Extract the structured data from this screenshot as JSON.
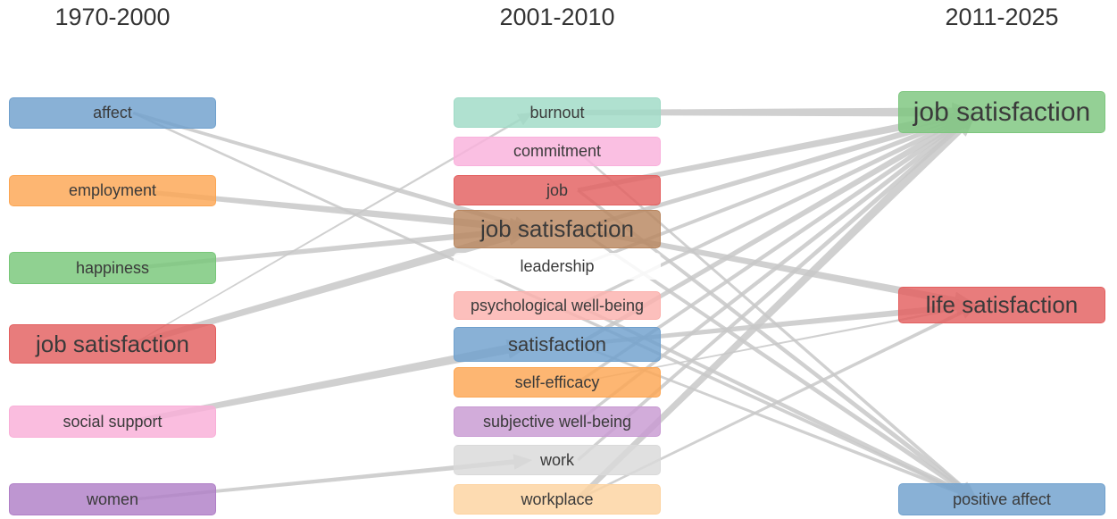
{
  "periods": [
    "1970-2000",
    "2001-2010",
    "2011-2025"
  ],
  "columns": [
    {
      "period": "1970-2000",
      "nodes": [
        {
          "label": "affect",
          "color": "#6fa0cd",
          "weight": 1
        },
        {
          "label": "employment",
          "color": "#fca653",
          "weight": 1
        },
        {
          "label": "happiness",
          "color": "#78c779",
          "weight": 1
        },
        {
          "label": "job satisfaction",
          "color": "#e35f5f",
          "weight": 3
        },
        {
          "label": "social support",
          "color": "#f9afd8",
          "weight": 1
        },
        {
          "label": "women",
          "color": "#b07fc7",
          "weight": 1
        }
      ]
    },
    {
      "period": "2001-2010",
      "nodes": [
        {
          "label": "burnout",
          "color": "#9fdac6",
          "weight": 1
        },
        {
          "label": "commitment",
          "color": "#f9b1dc",
          "weight": 1
        },
        {
          "label": "job",
          "color": "#e35f5f",
          "weight": 1
        },
        {
          "label": "job satisfaction",
          "color": "#b8865f",
          "weight": 3
        },
        {
          "label": "leadership",
          "color": "#ffffff",
          "weight": 1
        },
        {
          "label": "psychological well-being",
          "color": "#fbb1ad",
          "weight": 1
        },
        {
          "label": "satisfaction",
          "color": "#6fa0cd",
          "weight": 2
        },
        {
          "label": "self-efficacy",
          "color": "#fca653",
          "weight": 1
        },
        {
          "label": "subjective well-being",
          "color": "#c89ad2",
          "weight": 1
        },
        {
          "label": "work",
          "color": "#d9d9d9",
          "weight": 1
        },
        {
          "label": "workplace",
          "color": "#fdd3a0",
          "weight": 1
        }
      ]
    },
    {
      "period": "2011-2025",
      "nodes": [
        {
          "label": "job satisfaction",
          "color": "#7dc67e",
          "weight": 4
        },
        {
          "label": "life satisfaction",
          "color": "#e35f5f",
          "weight": 3
        },
        {
          "label": "positive affect",
          "color": "#6fa0cd",
          "weight": 1
        }
      ]
    }
  ],
  "links": [
    {
      "from": [
        0,
        0
      ],
      "to": [
        1,
        3
      ],
      "value": 3
    },
    {
      "from": [
        0,
        0
      ],
      "to": [
        2,
        2
      ],
      "value": 2
    },
    {
      "from": [
        0,
        1
      ],
      "to": [
        1,
        3
      ],
      "value": 5
    },
    {
      "from": [
        0,
        2
      ],
      "to": [
        1,
        3
      ],
      "value": 4
    },
    {
      "from": [
        0,
        3
      ],
      "to": [
        1,
        0
      ],
      "value": 1
    },
    {
      "from": [
        0,
        3
      ],
      "to": [
        1,
        3
      ],
      "value": 6
    },
    {
      "from": [
        0,
        4
      ],
      "to": [
        1,
        6
      ],
      "value": 6
    },
    {
      "from": [
        0,
        5
      ],
      "to": [
        1,
        9
      ],
      "value": 3
    },
    {
      "from": [
        1,
        0
      ],
      "to": [
        2,
        0
      ],
      "value": 6
    },
    {
      "from": [
        1,
        1
      ],
      "to": [
        2,
        2
      ],
      "value": 2
    },
    {
      "from": [
        1,
        2
      ],
      "to": [
        2,
        0
      ],
      "value": 5
    },
    {
      "from": [
        1,
        2
      ],
      "to": [
        2,
        2
      ],
      "value": 3
    },
    {
      "from": [
        1,
        3
      ],
      "to": [
        2,
        0
      ],
      "value": 4
    },
    {
      "from": [
        1,
        3
      ],
      "to": [
        2,
        1
      ],
      "value": 5
    },
    {
      "from": [
        1,
        3
      ],
      "to": [
        2,
        2
      ],
      "value": 3
    },
    {
      "from": [
        1,
        4
      ],
      "to": [
        2,
        0
      ],
      "value": 3
    },
    {
      "from": [
        1,
        5
      ],
      "to": [
        2,
        0
      ],
      "value": 3
    },
    {
      "from": [
        1,
        5
      ],
      "to": [
        2,
        2
      ],
      "value": 3
    },
    {
      "from": [
        1,
        6
      ],
      "to": [
        2,
        0
      ],
      "value": 4
    },
    {
      "from": [
        1,
        6
      ],
      "to": [
        2,
        1
      ],
      "value": 4
    },
    {
      "from": [
        1,
        6
      ],
      "to": [
        2,
        2
      ],
      "value": 2
    },
    {
      "from": [
        1,
        7
      ],
      "to": [
        2,
        0
      ],
      "value": 3
    },
    {
      "from": [
        1,
        7
      ],
      "to": [
        2,
        1
      ],
      "value": 1
    },
    {
      "from": [
        1,
        8
      ],
      "to": [
        2,
        0
      ],
      "value": 3
    },
    {
      "from": [
        1,
        9
      ],
      "to": [
        2,
        0
      ],
      "value": 3
    },
    {
      "from": [
        1,
        10
      ],
      "to": [
        2,
        0
      ],
      "value": 6
    },
    {
      "from": [
        1,
        10
      ],
      "to": [
        2,
        1
      ],
      "value": 2
    }
  ],
  "style": {
    "link_color": "#c8c8c8",
    "label_color": "#3a3a3a",
    "title_color": "#333333"
  }
}
